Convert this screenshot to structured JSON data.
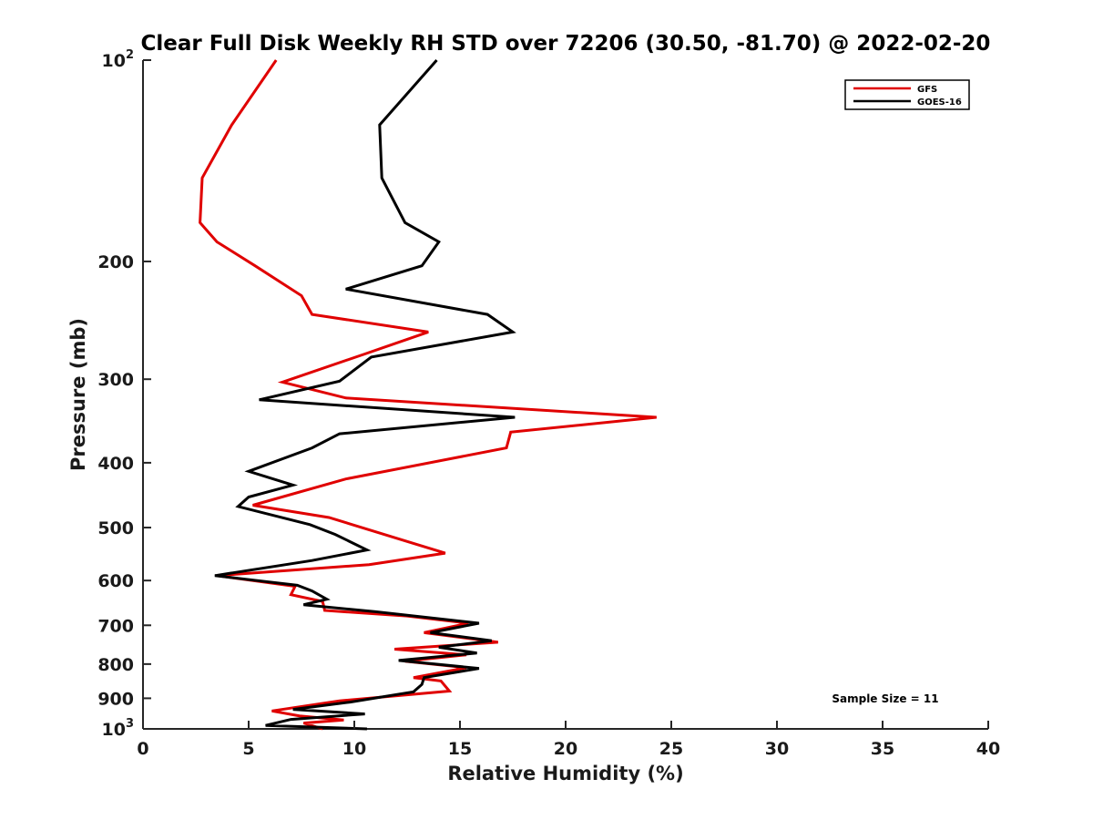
{
  "chart_data": {
    "type": "line",
    "title": "Clear Full Disk Weekly RH STD over 72206 (30.50, -81.70) @ 2022-02-20",
    "xlabel": "Relative Humidity (%)",
    "ylabel": "Pressure (mb)",
    "xlim": [
      0,
      40
    ],
    "ylim": [
      100,
      1000
    ],
    "y_scale": "log",
    "y_reversed": true,
    "x_ticks": [
      "0",
      "5",
      "10",
      "15",
      "20",
      "25",
      "30",
      "35",
      "40"
    ],
    "y_ticks": [
      {
        "value": 100,
        "base": "10",
        "sup": "2"
      },
      {
        "value": 200,
        "label": "200"
      },
      {
        "value": 300,
        "label": "300"
      },
      {
        "value": 400,
        "label": "400"
      },
      {
        "value": 500,
        "label": "500"
      },
      {
        "value": 600,
        "label": "600"
      },
      {
        "value": 700,
        "label": "700"
      },
      {
        "value": 800,
        "label": "800"
      },
      {
        "value": 900,
        "label": "900"
      },
      {
        "value": 1000,
        "base": "10",
        "sup": "3"
      }
    ],
    "grid": false,
    "legend_position": "top-right",
    "annotation": "Sample Size = 11",
    "series": [
      {
        "name": "GFS",
        "color": "#e00000",
        "points": [
          [
            6.3,
            100
          ],
          [
            4.2,
            125
          ],
          [
            2.8,
            150
          ],
          [
            2.7,
            175
          ],
          [
            3.5,
            187
          ],
          [
            5.3,
            203
          ],
          [
            7.5,
            225
          ],
          [
            8.0,
            240
          ],
          [
            13.5,
            255
          ],
          [
            10.5,
            275
          ],
          [
            6.6,
            303
          ],
          [
            9.6,
            320
          ],
          [
            24.3,
            342
          ],
          [
            17.4,
            360
          ],
          [
            17.2,
            380
          ],
          [
            9.6,
            423
          ],
          [
            5.2,
            463
          ],
          [
            8.8,
            483
          ],
          [
            12.8,
            528
          ],
          [
            14.3,
            546
          ],
          [
            10.7,
            568
          ],
          [
            3.5,
            590
          ],
          [
            7.2,
            612
          ],
          [
            7.0,
            630
          ],
          [
            8.5,
            645
          ],
          [
            8.6,
            665
          ],
          [
            12.5,
            678
          ],
          [
            15.4,
            695
          ],
          [
            13.3,
            718
          ],
          [
            16.8,
            742
          ],
          [
            11.9,
            760
          ],
          [
            15.3,
            775
          ],
          [
            12.4,
            792
          ],
          [
            15.3,
            810
          ],
          [
            12.8,
            838
          ],
          [
            14.1,
            848
          ],
          [
            14.5,
            878
          ],
          [
            9.3,
            908
          ],
          [
            6.1,
            940
          ],
          [
            7.4,
            956
          ],
          [
            9.5,
            970
          ],
          [
            7.6,
            980
          ],
          [
            8.5,
            1000
          ]
        ]
      },
      {
        "name": "GOES-16",
        "color": "#000000",
        "points": [
          [
            13.9,
            100
          ],
          [
            11.2,
            125
          ],
          [
            11.3,
            150
          ],
          [
            12.4,
            175
          ],
          [
            14.0,
            187
          ],
          [
            13.2,
            203
          ],
          [
            9.6,
            220
          ],
          [
            16.3,
            240
          ],
          [
            17.5,
            255
          ],
          [
            10.8,
            278
          ],
          [
            9.3,
            302
          ],
          [
            5.5,
            322
          ],
          [
            17.6,
            342
          ],
          [
            9.3,
            362
          ],
          [
            8.0,
            380
          ],
          [
            5.0,
            412
          ],
          [
            7.1,
            432
          ],
          [
            5.0,
            450
          ],
          [
            4.5,
            465
          ],
          [
            7.9,
            495
          ],
          [
            9.1,
            512
          ],
          [
            10.6,
            540
          ],
          [
            8.0,
            560
          ],
          [
            3.4,
            590
          ],
          [
            7.3,
            610
          ],
          [
            8.0,
            622
          ],
          [
            8.7,
            640
          ],
          [
            7.6,
            652
          ],
          [
            11.0,
            668
          ],
          [
            15.9,
            695
          ],
          [
            13.6,
            718
          ],
          [
            16.5,
            738
          ],
          [
            14.0,
            755
          ],
          [
            15.8,
            770
          ],
          [
            12.1,
            790
          ],
          [
            15.9,
            812
          ],
          [
            13.3,
            838
          ],
          [
            13.2,
            858
          ],
          [
            12.8,
            880
          ],
          [
            9.8,
            912
          ],
          [
            7.1,
            935
          ],
          [
            10.5,
            950
          ],
          [
            7.0,
            968
          ],
          [
            5.8,
            988
          ],
          [
            10.6,
            1000
          ]
        ]
      }
    ]
  }
}
